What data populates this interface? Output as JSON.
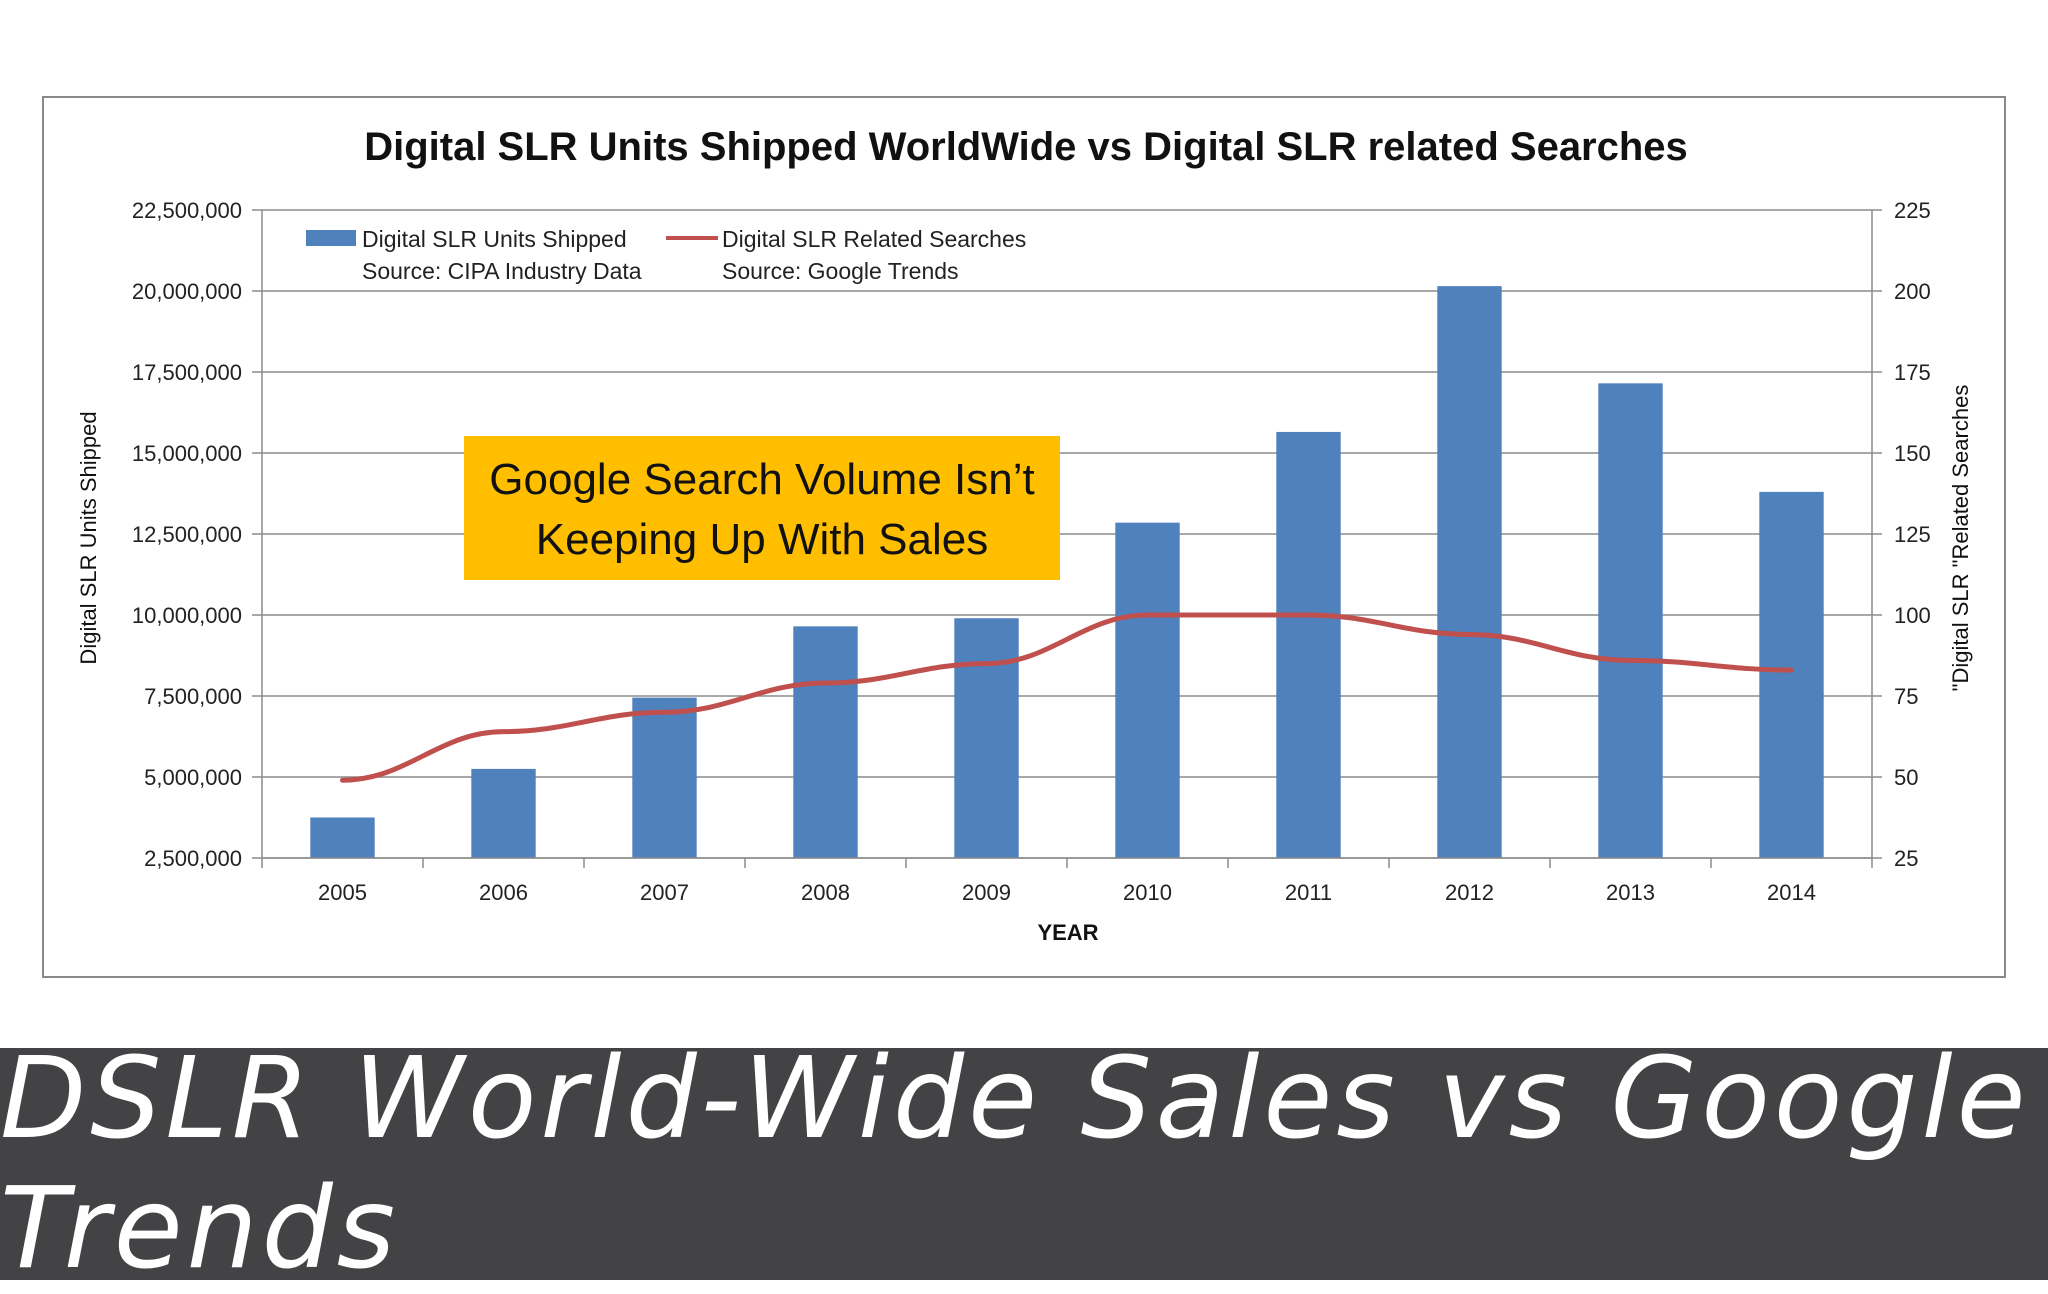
{
  "footer": {
    "title": "DSLR World-Wide Sales vs Google Trends"
  },
  "callout": {
    "line1": "Google Search Volume Isn’t",
    "line2": "Keeping Up With Sales",
    "bg_color": "#FFBF00"
  },
  "chart_data": {
    "type": "bar",
    "title": "Digital SLR Units Shipped WorldWide vs Digital SLR related Searches",
    "xlabel": "YEAR",
    "ylabel": "Digital SLR Units Shipped",
    "y2label": "\"Digital SLR \"Related Searches",
    "categories": [
      "2005",
      "2006",
      "2007",
      "2008",
      "2009",
      "2010",
      "2011",
      "2012",
      "2013",
      "2014"
    ],
    "ylim": [
      2500000,
      22500000
    ],
    "y_ticks": [
      "2,500,000",
      "5,000,000",
      "7,500,000",
      "10,000,000",
      "12,500,000",
      "15,000,000",
      "17,500,000",
      "20,000,000",
      "22,500,000"
    ],
    "y2lim": [
      25,
      225
    ],
    "y2_ticks": [
      "25",
      "50",
      "75",
      "100",
      "125",
      "150",
      "175",
      "200",
      "225"
    ],
    "grid": true,
    "legend_position": "top-left",
    "series": [
      {
        "name": "Digital SLR Units Shipped",
        "source": "Source: CIPA Industry Data",
        "type": "bar",
        "axis": "left",
        "color": "#4F81BD",
        "values": [
          3750000,
          5250000,
          7450000,
          9650000,
          9900000,
          12850000,
          15650000,
          20150000,
          17150000,
          13800000
        ]
      },
      {
        "name": "Digital SLR Related Searches",
        "source": "Source: Google Trends",
        "type": "line",
        "axis": "right",
        "color": "#C0504D",
        "values": [
          49,
          64,
          70,
          79,
          85,
          100,
          100,
          94,
          86,
          83
        ]
      }
    ]
  }
}
